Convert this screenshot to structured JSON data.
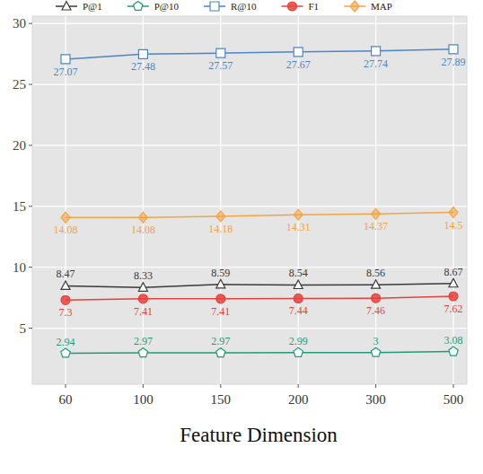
{
  "chart_data": {
    "type": "line",
    "x_label": "Feature Dimension",
    "categories": [
      "60",
      "100",
      "150",
      "200",
      "300",
      "500"
    ],
    "series": [
      {
        "name": "P@1",
        "color": "#3a3a3a",
        "marker": "triangle",
        "values": [
          8.47,
          8.33,
          8.59,
          8.54,
          8.56,
          8.67
        ]
      },
      {
        "name": "P@10",
        "color": "#1b9e77",
        "marker": "pentagon",
        "values": [
          2.94,
          2.97,
          2.97,
          2.99,
          3,
          3.08
        ]
      },
      {
        "name": "R@10",
        "color": "#4a86c8",
        "marker": "square",
        "values": [
          27.07,
          27.48,
          27.57,
          27.67,
          27.74,
          27.89
        ]
      },
      {
        "name": "F1",
        "color": "#e8413c",
        "marker": "circle",
        "values": [
          7.3,
          7.41,
          7.41,
          7.44,
          7.46,
          7.62
        ]
      },
      {
        "name": "MAP",
        "color": "#f4a442",
        "marker": "diamond",
        "values": [
          14.08,
          14.08,
          14.18,
          14.31,
          14.37,
          14.5
        ]
      }
    ],
    "ylim": [
      0.4,
      30.6
    ],
    "yticks": [
      5,
      10,
      15,
      20,
      25,
      30
    ],
    "grid": true,
    "legend": "top",
    "data_labels": true
  }
}
